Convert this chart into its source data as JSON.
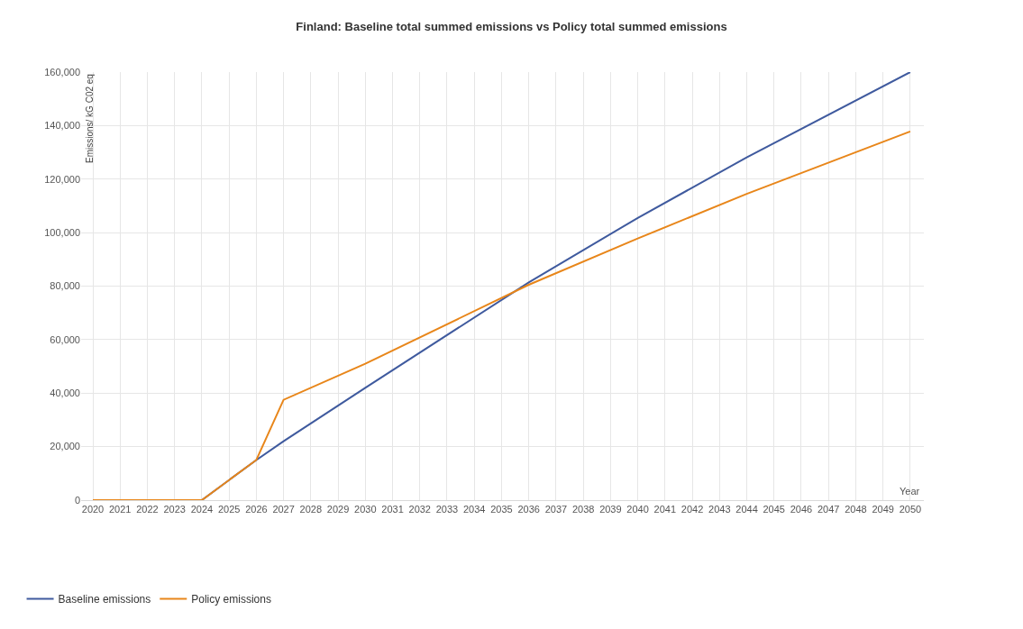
{
  "chart_data": {
    "type": "line",
    "title": "Finland: Baseline total summed emissions vs Policy total summed emissions",
    "xlabel": "Year",
    "ylabel": "Emissions/ kG C02 eq",
    "x": [
      2020,
      2024,
      2026,
      2027,
      2030,
      2036,
      2040,
      2044,
      2050
    ],
    "series": [
      {
        "name": "Baseline emissions",
        "color": "#3f5a9e",
        "values": [
          0,
          0,
          15000,
          22000,
          42000,
          81400,
          105500,
          128100,
          160000
        ]
      },
      {
        "name": "Policy emissions",
        "color": "#e8861a",
        "values": [
          0,
          0,
          15000,
          37500,
          51000,
          80500,
          97800,
          114500,
          137800
        ]
      }
    ],
    "xlim": [
      2019.57,
      2050.5
    ],
    "xticks": [
      2020,
      2021,
      2022,
      2023,
      2024,
      2025,
      2026,
      2027,
      2028,
      2029,
      2030,
      2031,
      2032,
      2033,
      2034,
      2035,
      2036,
      2037,
      2038,
      2039,
      2040,
      2041,
      2042,
      2043,
      2044,
      2045,
      2046,
      2047,
      2048,
      2049,
      2050
    ],
    "ylim": [
      0,
      160000
    ],
    "yticks": [
      {
        "value": 0,
        "label": "0"
      },
      {
        "value": 20000,
        "label": "20,000"
      },
      {
        "value": 40000,
        "label": "40,000"
      },
      {
        "value": 60000,
        "label": "60,000"
      },
      {
        "value": 80000,
        "label": "80,000"
      },
      {
        "value": 100000,
        "label": "100,000"
      },
      {
        "value": 120000,
        "label": "120,000"
      },
      {
        "value": 140000,
        "label": "140,000"
      },
      {
        "value": 160000,
        "label": "160,000"
      }
    ],
    "grid": true,
    "legend": "bottom left",
    "marker": "none",
    "line_style": "solid"
  }
}
